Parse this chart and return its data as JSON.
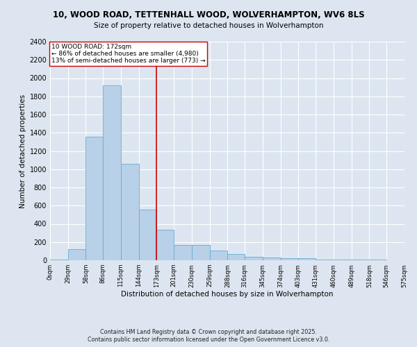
{
  "title_line1": "10, WOOD ROAD, TETTENHALL WOOD, WOLVERHAMPTON, WV6 8LS",
  "title_line2": "Size of property relative to detached houses in Wolverhampton",
  "xlabel": "Distribution of detached houses by size in Wolverhampton",
  "ylabel": "Number of detached properties",
  "footer_line1": "Contains HM Land Registry data © Crown copyright and database right 2025.",
  "footer_line2": "Contains public sector information licensed under the Open Government Licence v3.0.",
  "annotation_line1": "10 WOOD ROAD: 172sqm",
  "annotation_line2": "← 86% of detached houses are smaller (4,980)",
  "annotation_line3": "13% of semi-detached houses are larger (773) →",
  "property_size": 172,
  "bar_color": "#b8d0e8",
  "bar_edge_color": "#6aacd4",
  "vline_color": "#cc0000",
  "annotation_box_color": "#cc0000",
  "fig_background_color": "#dde6f0",
  "ax_background_color": "#dde6f0",
  "grid_color": "#ffffff",
  "bins": [
    0,
    29,
    58,
    86,
    115,
    144,
    173,
    201,
    230,
    259,
    288,
    316,
    345,
    374,
    403,
    431,
    460,
    489,
    518,
    546,
    575
  ],
  "counts": [
    10,
    125,
    1360,
    1920,
    1060,
    560,
    335,
    170,
    170,
    110,
    65,
    40,
    30,
    25,
    20,
    10,
    5,
    5,
    5,
    0,
    5
  ],
  "ylim": [
    0,
    2400
  ],
  "yticks": [
    0,
    200,
    400,
    600,
    800,
    1000,
    1200,
    1400,
    1600,
    1800,
    2000,
    2200,
    2400
  ],
  "xlabels": [
    "0sqm",
    "29sqm",
    "58sqm",
    "86sqm",
    "115sqm",
    "144sqm",
    "173sqm",
    "201sqm",
    "230sqm",
    "259sqm",
    "288sqm",
    "316sqm",
    "345sqm",
    "374sqm",
    "403sqm",
    "431sqm",
    "460sqm",
    "489sqm",
    "518sqm",
    "546sqm",
    "575sqm"
  ]
}
